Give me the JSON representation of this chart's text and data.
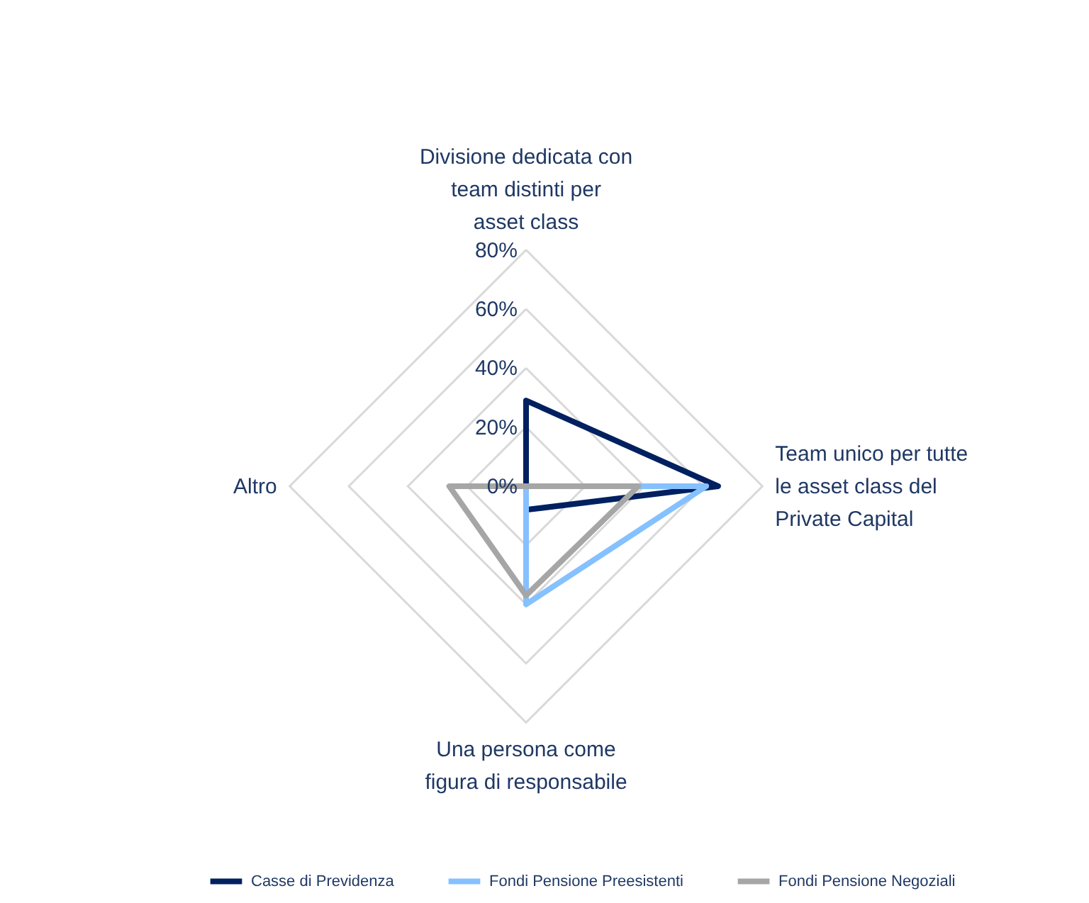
{
  "chart_data": {
    "type": "radar",
    "categories": [
      "Divisione dedicata con team distinti per asset class",
      "Team unico per tutte le asset class del Private Capital",
      "Una persona come figura di responsabile",
      "Altro"
    ],
    "series": [
      {
        "name": "Casse di Previdenza",
        "color": "#002060",
        "values": [
          29,
          65,
          8,
          0
        ]
      },
      {
        "name": "Fondi Pensione Preesistenti",
        "color": "#85c1ff",
        "values": [
          0,
          61,
          40,
          0
        ]
      },
      {
        "name": "Fondi Pensione Negoziali",
        "color": "#a6a6a6",
        "values": [
          0,
          38,
          37,
          26
        ]
      }
    ],
    "ylim": [
      0,
      80
    ],
    "yticks": [
      {
        "value": 0,
        "label": "0%"
      },
      {
        "value": 20,
        "label": "20%"
      },
      {
        "value": 40,
        "label": "40%"
      },
      {
        "value": 60,
        "label": "60%"
      },
      {
        "value": 80,
        "label": "80%"
      }
    ],
    "grid": true,
    "legend": "bottom"
  }
}
